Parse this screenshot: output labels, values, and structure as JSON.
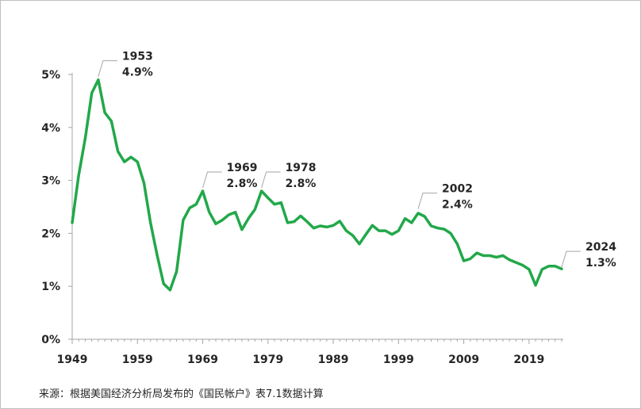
{
  "chart_data": {
    "type": "line",
    "title": "",
    "xlabel": "",
    "ylabel": "",
    "xlim": [
      1949,
      2024
    ],
    "ylim": [
      0,
      5
    ],
    "grid": false,
    "line_color": "#22A84A",
    "x_ticks": [
      "1949",
      "1959",
      "1969",
      "1979",
      "1989",
      "1999",
      "2009",
      "2019"
    ],
    "y_ticks": [
      "0%",
      "1%",
      "2%",
      "3%",
      "4%",
      "5%"
    ],
    "series": [
      {
        "x": [
          1949,
          1950,
          1951,
          1952,
          1953,
          1954,
          1955,
          1956,
          1957,
          1958,
          1959,
          1960,
          1961,
          1962,
          1963,
          1964,
          1965,
          1966,
          1967,
          1968,
          1969,
          1970,
          1971,
          1972,
          1973,
          1974,
          1975,
          1976,
          1977,
          1978,
          1979,
          1980,
          1981,
          1982,
          1983,
          1984,
          1985,
          1986,
          1987,
          1988,
          1989,
          1990,
          1991,
          1992,
          1993,
          1994,
          1995,
          1996,
          1997,
          1998,
          1999,
          2000,
          2001,
          2002,
          2003,
          2004,
          2005,
          2006,
          2007,
          2008,
          2009,
          2010,
          2011,
          2012,
          2013,
          2014,
          2015,
          2016,
          2017,
          2018,
          2019,
          2020,
          2021,
          2022,
          2023,
          2024
        ],
        "y": [
          2.2,
          3.1,
          3.8,
          4.65,
          4.9,
          4.28,
          4.12,
          3.55,
          3.35,
          3.44,
          3.35,
          2.95,
          2.2,
          1.6,
          1.05,
          0.93,
          1.28,
          2.25,
          2.48,
          2.55,
          2.8,
          2.4,
          2.18,
          2.25,
          2.35,
          2.4,
          2.07,
          2.28,
          2.45,
          2.8,
          2.67,
          2.55,
          2.58,
          2.2,
          2.22,
          2.33,
          2.22,
          2.1,
          2.14,
          2.12,
          2.15,
          2.23,
          2.05,
          1.96,
          1.8,
          1.98,
          2.15,
          2.05,
          2.05,
          1.98,
          2.05,
          2.28,
          2.2,
          2.38,
          2.32,
          2.14,
          2.1,
          2.08,
          2.0,
          1.8,
          1.48,
          1.52,
          1.63,
          1.58,
          1.58,
          1.55,
          1.58,
          1.5,
          1.45,
          1.4,
          1.32,
          1.02,
          1.32,
          1.38,
          1.38,
          1.33
        ]
      }
    ],
    "annotations": [
      {
        "x": 1953,
        "y": 4.9,
        "label": "1953",
        "value": "4.9%"
      },
      {
        "x": 1969,
        "y": 2.8,
        "label": "1969",
        "value": "2.8%"
      },
      {
        "x": 1978,
        "y": 2.8,
        "label": "1978",
        "value": "2.8%"
      },
      {
        "x": 2002,
        "y": 2.4,
        "label": "2002",
        "value": "2.4%"
      },
      {
        "x": 2024,
        "y": 1.3,
        "label": "2024",
        "value": "1.3%"
      }
    ]
  },
  "footer": {
    "source": "来源：根据美国经济分析局发布的《国民帐户》表7.1数据计算"
  }
}
